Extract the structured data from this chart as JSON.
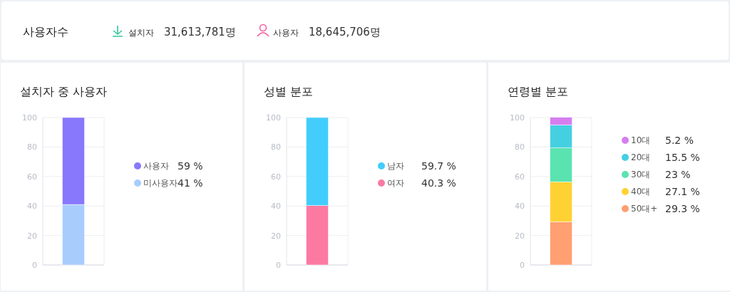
{
  "chart_data": [
    {
      "type": "other",
      "title": "사용자수",
      "annotations": [
        "설치자",
        "31,613,781명",
        "사용자",
        "18,645,706명"
      ]
    },
    {
      "type": "bar",
      "title": "설치자 중 사용자",
      "stacked": true,
      "categories": [
        null
      ],
      "ylim": [
        0,
        100
      ],
      "yticks": [
        0,
        20,
        40,
        60,
        80,
        100
      ],
      "grid": "y",
      "legend": "right",
      "annotations": [
        "59 %",
        "41 %"
      ],
      "series": [
        {
          "name": "미사용자",
          "color": "#a8cdfd",
          "values": [
            41
          ]
        },
        {
          "name": "사용자",
          "color": "#8778fc",
          "values": [
            59
          ]
        }
      ]
    },
    {
      "type": "bar",
      "title": "성별 분포",
      "stacked": true,
      "categories": [
        null
      ],
      "ylim": [
        0,
        100
      ],
      "yticks": [
        0,
        20,
        40,
        60,
        80,
        100
      ],
      "grid": "y",
      "legend": "right",
      "annotations": [
        "59.7 %",
        "40.3 %"
      ],
      "series": [
        {
          "name": "여자",
          "color": "#fc7aa2",
          "values": [
            40.3
          ]
        },
        {
          "name": "남자",
          "color": "#42cdfc",
          "values": [
            59.7
          ]
        }
      ]
    },
    {
      "type": "bar",
      "title": "연령별 분포",
      "stacked": true,
      "categories": [
        null
      ],
      "ylim": [
        0,
        100
      ],
      "yticks": [
        0,
        20,
        40,
        60,
        80,
        100
      ],
      "grid": "y",
      "legend": "right",
      "annotations": [
        "5.2 %",
        "15.5 %",
        "23 %",
        "27.1 %",
        "29.3 %"
      ],
      "series": [
        {
          "name": "50대+",
          "color": "#ff9f72",
          "values": [
            29.3
          ]
        },
        {
          "name": "40대",
          "color": "#ffd234",
          "values": [
            27.1
          ]
        },
        {
          "name": "30대",
          "color": "#5ae3b0",
          "values": [
            23
          ]
        },
        {
          "name": "20대",
          "color": "#45d0e2",
          "values": [
            15.5
          ]
        },
        {
          "name": "10대",
          "color": "#d67ef0",
          "values": [
            5.2
          ]
        }
      ]
    }
  ]
}
